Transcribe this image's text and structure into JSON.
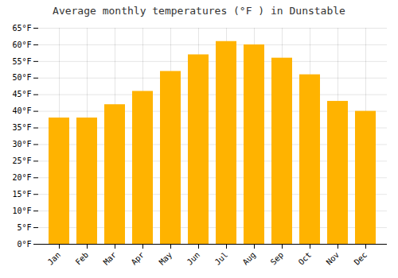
{
  "chart_data": {
    "type": "bar",
    "title": "Average monthly temperatures (°F ) in Dunstable",
    "categories": [
      "Jan",
      "Feb",
      "Mar",
      "Apr",
      "May",
      "Jun",
      "Jul",
      "Aug",
      "Sep",
      "Oct",
      "Nov",
      "Dec"
    ],
    "values": [
      38,
      38,
      42,
      46,
      52,
      57,
      61,
      60,
      56,
      51,
      43,
      40
    ],
    "color": "#FFB300",
    "ylim": [
      0,
      65
    ],
    "yticks": [
      {
        "value": 0,
        "label": "0°F"
      },
      {
        "value": 5,
        "label": "5°F"
      },
      {
        "value": 10,
        "label": "10°F"
      },
      {
        "value": 15,
        "label": "15°F"
      },
      {
        "value": 20,
        "label": "20°F"
      },
      {
        "value": 25,
        "label": "25°F"
      },
      {
        "value": 30,
        "label": "30°F"
      },
      {
        "value": 35,
        "label": "35°F"
      },
      {
        "value": 40,
        "label": "40°F"
      },
      {
        "value": 45,
        "label": "45°F"
      },
      {
        "value": 50,
        "label": "50°F"
      },
      {
        "value": 55,
        "label": "55°F"
      },
      {
        "value": 60,
        "label": "60°F"
      },
      {
        "value": 65,
        "label": "65°F"
      }
    ],
    "grid": true
  }
}
